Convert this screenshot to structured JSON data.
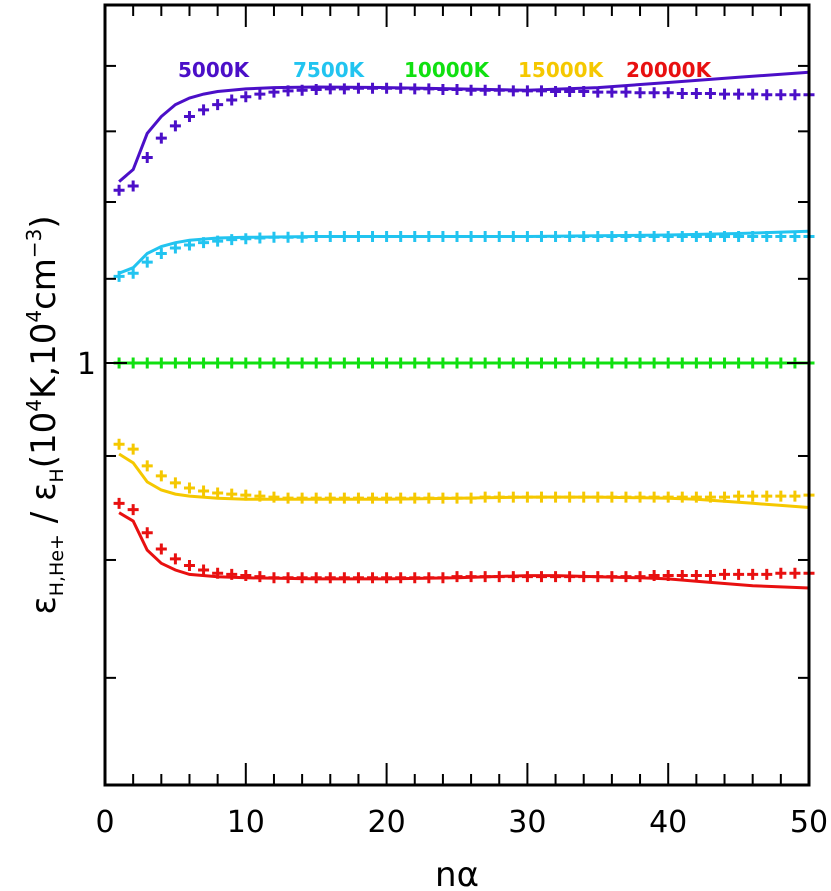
{
  "chart_data": {
    "type": "line",
    "xlabel": "nα",
    "ylabel_parts": {
      "num_sym": "ε",
      "num_sub": "H,He+",
      "slash": "/",
      "den_sym": "ε",
      "den_sub": "H",
      "den_open": "(10",
      "den_exp1": "4",
      "den_mid": "K,10",
      "den_exp2": "4",
      "den_unit": "cm",
      "den_exp3": "−3",
      "den_close": ")"
    },
    "xlim": [
      0,
      50
    ],
    "ylim": [
      0.62,
      1.5
    ],
    "yscale": "log",
    "x_ticks": [
      0,
      10,
      20,
      30,
      40,
      50
    ],
    "x_tick_labels": [
      "0",
      "10",
      "20",
      "30",
      "40",
      "50"
    ],
    "y_major_ticks": [
      1.0
    ],
    "y_major_tick_labels": [
      "1"
    ],
    "y_minor_ticks": [
      0.7,
      0.8,
      0.9,
      1.1,
      1.2,
      1.3,
      1.4
    ],
    "grid": false,
    "legend_position": "top",
    "series": [
      {
        "name": "5000K",
        "color": "#4b0fc8",
        "line": {
          "x": [
            1,
            2,
            3,
            4,
            5,
            6,
            7,
            8,
            10,
            12,
            15,
            20,
            25,
            30,
            35,
            40,
            45,
            50
          ],
          "y": [
            1.228,
            1.245,
            1.297,
            1.322,
            1.34,
            1.35,
            1.356,
            1.36,
            1.364,
            1.366,
            1.367,
            1.366,
            1.364,
            1.362,
            1.366,
            1.374,
            1.382,
            1.39
          ]
        },
        "markers": {
          "x": [
            1,
            2,
            3,
            4,
            5,
            6,
            7,
            8,
            9,
            10,
            11,
            12,
            13,
            14,
            15,
            16,
            17,
            18,
            19,
            20,
            21,
            22,
            23,
            24,
            25,
            26,
            27,
            28,
            29,
            30,
            31,
            32,
            33,
            34,
            35,
            36,
            37,
            38,
            39,
            40,
            41,
            42,
            43,
            44,
            45,
            46,
            47,
            48,
            49,
            50
          ],
          "y": [
            1.216,
            1.222,
            1.262,
            1.29,
            1.308,
            1.322,
            1.332,
            1.34,
            1.347,
            1.352,
            1.356,
            1.359,
            1.361,
            1.362,
            1.363,
            1.364,
            1.364,
            1.365,
            1.365,
            1.365,
            1.365,
            1.364,
            1.364,
            1.363,
            1.363,
            1.362,
            1.362,
            1.362,
            1.361,
            1.361,
            1.361,
            1.36,
            1.36,
            1.36,
            1.359,
            1.359,
            1.359,
            1.358,
            1.358,
            1.358,
            1.357,
            1.357,
            1.357,
            1.356,
            1.356,
            1.356,
            1.355,
            1.355,
            1.355,
            1.355
          ]
        }
      },
      {
        "name": "7500K",
        "color": "#22c4f0",
        "line": {
          "x": [
            1,
            2,
            3,
            4,
            5,
            6,
            8,
            10,
            15,
            20,
            25,
            30,
            35,
            40,
            45,
            50
          ],
          "y": [
            1.107,
            1.114,
            1.132,
            1.141,
            1.146,
            1.149,
            1.152,
            1.153,
            1.154,
            1.154,
            1.154,
            1.154,
            1.155,
            1.156,
            1.158,
            1.161
          ]
        },
        "markers": {
          "x": [
            1,
            2,
            3,
            4,
            5,
            6,
            7,
            8,
            9,
            10,
            11,
            12,
            13,
            14,
            15,
            16,
            17,
            18,
            19,
            20,
            21,
            22,
            23,
            24,
            25,
            26,
            27,
            28,
            29,
            30,
            31,
            32,
            33,
            34,
            35,
            36,
            37,
            38,
            39,
            40,
            41,
            42,
            43,
            44,
            45,
            46,
            47,
            48,
            49,
            50
          ],
          "y": [
            1.103,
            1.107,
            1.121,
            1.132,
            1.139,
            1.143,
            1.146,
            1.148,
            1.15,
            1.151,
            1.152,
            1.153,
            1.153,
            1.153,
            1.154,
            1.154,
            1.154,
            1.154,
            1.154,
            1.154,
            1.154,
            1.154,
            1.154,
            1.154,
            1.154,
            1.154,
            1.154,
            1.154,
            1.154,
            1.154,
            1.154,
            1.154,
            1.154,
            1.154,
            1.154,
            1.154,
            1.154,
            1.154,
            1.154,
            1.154,
            1.154,
            1.154,
            1.154,
            1.154,
            1.154,
            1.154,
            1.154,
            1.154,
            1.154,
            1.154
          ]
        }
      },
      {
        "name": "10000K",
        "color": "#10e010",
        "line": {
          "x": [
            1,
            50
          ],
          "y": [
            1.0,
            1.0
          ]
        },
        "markers": {
          "x": [
            1,
            2,
            3,
            4,
            5,
            6,
            7,
            8,
            9,
            10,
            11,
            12,
            13,
            14,
            15,
            16,
            17,
            18,
            19,
            20,
            21,
            22,
            23,
            24,
            25,
            26,
            27,
            28,
            29,
            30,
            31,
            32,
            33,
            34,
            35,
            36,
            37,
            38,
            39,
            40,
            41,
            42,
            43,
            44,
            45,
            46,
            47,
            48,
            49,
            50
          ],
          "y": [
            1.0,
            1.0,
            1.0,
            1.0,
            1.0,
            1.0,
            1.0,
            1.0,
            1.0,
            1.0,
            1.0,
            1.0,
            1.0,
            1.0,
            1.0,
            1.0,
            1.0,
            1.0,
            1.0,
            1.0,
            1.0,
            1.0,
            1.0,
            1.0,
            1.0,
            1.0,
            1.0,
            1.0,
            1.0,
            1.0,
            1.0,
            1.0,
            1.0,
            1.0,
            1.0,
            1.0,
            1.0,
            1.0,
            1.0,
            1.0,
            1.0,
            1.0,
            1.0,
            1.0,
            1.0,
            1.0,
            1.0,
            1.0,
            1.0,
            1.0
          ]
        }
      },
      {
        "name": "15000K",
        "color": "#f5c800",
        "line": {
          "x": [
            1,
            2,
            3,
            4,
            5,
            6,
            8,
            10,
            15,
            20,
            25,
            30,
            35,
            40,
            42,
            44,
            46,
            48,
            50
          ],
          "y": [
            0.902,
            0.893,
            0.874,
            0.866,
            0.862,
            0.86,
            0.858,
            0.857,
            0.857,
            0.857,
            0.858,
            0.859,
            0.859,
            0.858,
            0.857,
            0.855,
            0.853,
            0.851,
            0.849
          ]
        },
        "markers": {
          "x": [
            1,
            2,
            3,
            4,
            5,
            6,
            7,
            8,
            9,
            10,
            11,
            12,
            13,
            14,
            15,
            16,
            17,
            18,
            19,
            20,
            21,
            22,
            23,
            24,
            25,
            26,
            27,
            28,
            29,
            30,
            31,
            32,
            33,
            34,
            35,
            36,
            37,
            38,
            39,
            40,
            41,
            42,
            43,
            44,
            45,
            46,
            47,
            48,
            49,
            50
          ],
          "y": [
            0.912,
            0.907,
            0.89,
            0.88,
            0.873,
            0.868,
            0.865,
            0.863,
            0.862,
            0.861,
            0.86,
            0.859,
            0.858,
            0.858,
            0.858,
            0.858,
            0.858,
            0.858,
            0.858,
            0.858,
            0.858,
            0.858,
            0.858,
            0.858,
            0.858,
            0.858,
            0.859,
            0.859,
            0.859,
            0.859,
            0.859,
            0.859,
            0.859,
            0.859,
            0.859,
            0.859,
            0.859,
            0.859,
            0.859,
            0.859,
            0.859,
            0.859,
            0.859,
            0.859,
            0.86,
            0.86,
            0.86,
            0.86,
            0.86,
            0.861
          ]
        }
      },
      {
        "name": "20000K",
        "color": "#e81010",
        "line": {
          "x": [
            1,
            2,
            3,
            4,
            5,
            6,
            8,
            10,
            15,
            20,
            25,
            30,
            32,
            35,
            38,
            40,
            42,
            44,
            46,
            48,
            50
          ],
          "y": [
            0.844,
            0.836,
            0.809,
            0.797,
            0.791,
            0.787,
            0.785,
            0.784,
            0.783,
            0.783,
            0.784,
            0.786,
            0.786,
            0.785,
            0.784,
            0.783,
            0.781,
            0.779,
            0.777,
            0.776,
            0.775
          ]
        },
        "markers": {
          "x": [
            1,
            2,
            3,
            4,
            5,
            6,
            7,
            8,
            9,
            10,
            11,
            12,
            13,
            14,
            15,
            16,
            17,
            18,
            19,
            20,
            21,
            22,
            23,
            24,
            25,
            26,
            27,
            28,
            29,
            30,
            31,
            32,
            33,
            34,
            35,
            36,
            37,
            38,
            39,
            40,
            41,
            42,
            43,
            44,
            45,
            46,
            47,
            48,
            49,
            50
          ],
          "y": [
            0.853,
            0.847,
            0.825,
            0.81,
            0.801,
            0.795,
            0.791,
            0.788,
            0.787,
            0.786,
            0.785,
            0.784,
            0.784,
            0.784,
            0.784,
            0.784,
            0.784,
            0.784,
            0.784,
            0.784,
            0.784,
            0.784,
            0.784,
            0.784,
            0.785,
            0.785,
            0.785,
            0.785,
            0.785,
            0.785,
            0.785,
            0.785,
            0.785,
            0.785,
            0.785,
            0.785,
            0.785,
            0.785,
            0.786,
            0.786,
            0.786,
            0.786,
            0.786,
            0.787,
            0.787,
            0.787,
            0.787,
            0.788,
            0.788,
            0.788
          ]
        }
      }
    ]
  }
}
